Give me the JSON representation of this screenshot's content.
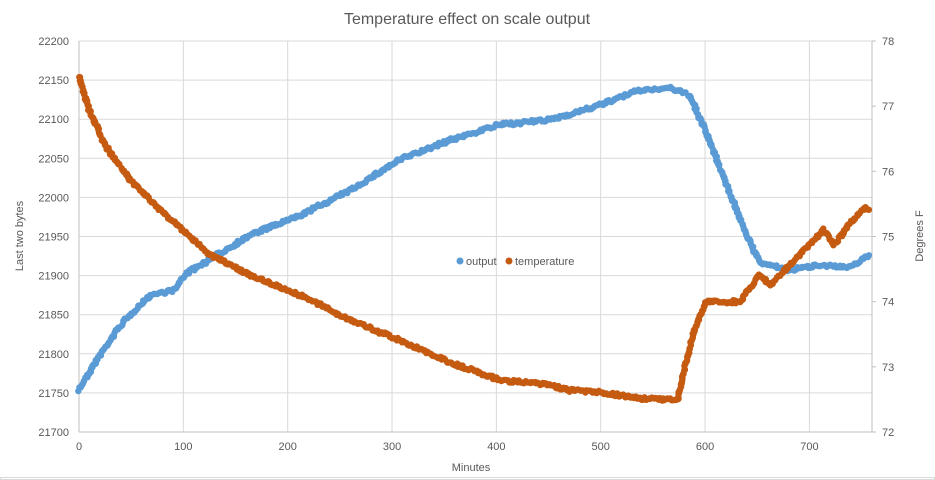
{
  "chart_data": {
    "type": "scatter",
    "title": "Temperature effect on scale output",
    "xlabel": "Minutes",
    "ylabel": "Last two bytes",
    "y2label": "Degrees F",
    "xlim": [
      0,
      760
    ],
    "ylim": [
      21700,
      22200
    ],
    "y2lim": [
      72,
      78
    ],
    "x_ticks": [
      0,
      100,
      200,
      300,
      400,
      500,
      600,
      700
    ],
    "y_ticks": [
      21700,
      21750,
      21800,
      21850,
      21900,
      21950,
      22000,
      22050,
      22100,
      22150,
      22200
    ],
    "y2_ticks": [
      72,
      73,
      74,
      75,
      76,
      77,
      78
    ],
    "grid": true,
    "legend_position": "center",
    "series": [
      {
        "name": "output",
        "axis": "left",
        "color": "#5b9bd5",
        "points": [
          [
            0,
            21754
          ],
          [
            5,
            21766
          ],
          [
            20,
            21798
          ],
          [
            40,
            21837
          ],
          [
            68,
            21875
          ],
          [
            92,
            21882
          ],
          [
            101,
            21901
          ],
          [
            116,
            21913
          ],
          [
            164,
            21952
          ],
          [
            212,
            21977
          ],
          [
            260,
            22009
          ],
          [
            307,
            22048
          ],
          [
            355,
            22073
          ],
          [
            403,
            22093
          ],
          [
            451,
            22099
          ],
          [
            499,
            22118
          ],
          [
            537,
            22137
          ],
          [
            566,
            22140
          ],
          [
            585,
            22131
          ],
          [
            600,
            22086
          ],
          [
            619,
            22022
          ],
          [
            638,
            21958
          ],
          [
            652,
            21917
          ],
          [
            681,
            21907
          ],
          [
            710,
            21914
          ],
          [
            738,
            21910
          ],
          [
            757,
            21926
          ]
        ]
      },
      {
        "name": "temperature",
        "axis": "right",
        "color": "#c55a11",
        "points": [
          [
            0,
            77.45
          ],
          [
            10,
            76.94
          ],
          [
            25,
            76.4
          ],
          [
            49,
            75.87
          ],
          [
            78,
            75.41
          ],
          [
            97,
            75.13
          ],
          [
            126,
            74.72
          ],
          [
            164,
            74.41
          ],
          [
            212,
            74.1
          ],
          [
            260,
            73.72
          ],
          [
            307,
            73.41
          ],
          [
            355,
            73.07
          ],
          [
            403,
            72.8
          ],
          [
            451,
            72.72
          ],
          [
            470,
            72.64
          ],
          [
            499,
            72.61
          ],
          [
            537,
            72.52
          ],
          [
            574,
            72.49
          ],
          [
            580,
            72.95
          ],
          [
            590,
            73.57
          ],
          [
            601,
            74.0
          ],
          [
            633,
            74.0
          ],
          [
            652,
            74.41
          ],
          [
            662,
            74.26
          ],
          [
            681,
            74.56
          ],
          [
            700,
            74.87
          ],
          [
            714,
            75.1
          ],
          [
            724,
            74.87
          ],
          [
            738,
            75.18
          ],
          [
            753,
            75.44
          ],
          [
            757,
            75.41
          ]
        ]
      }
    ]
  }
}
